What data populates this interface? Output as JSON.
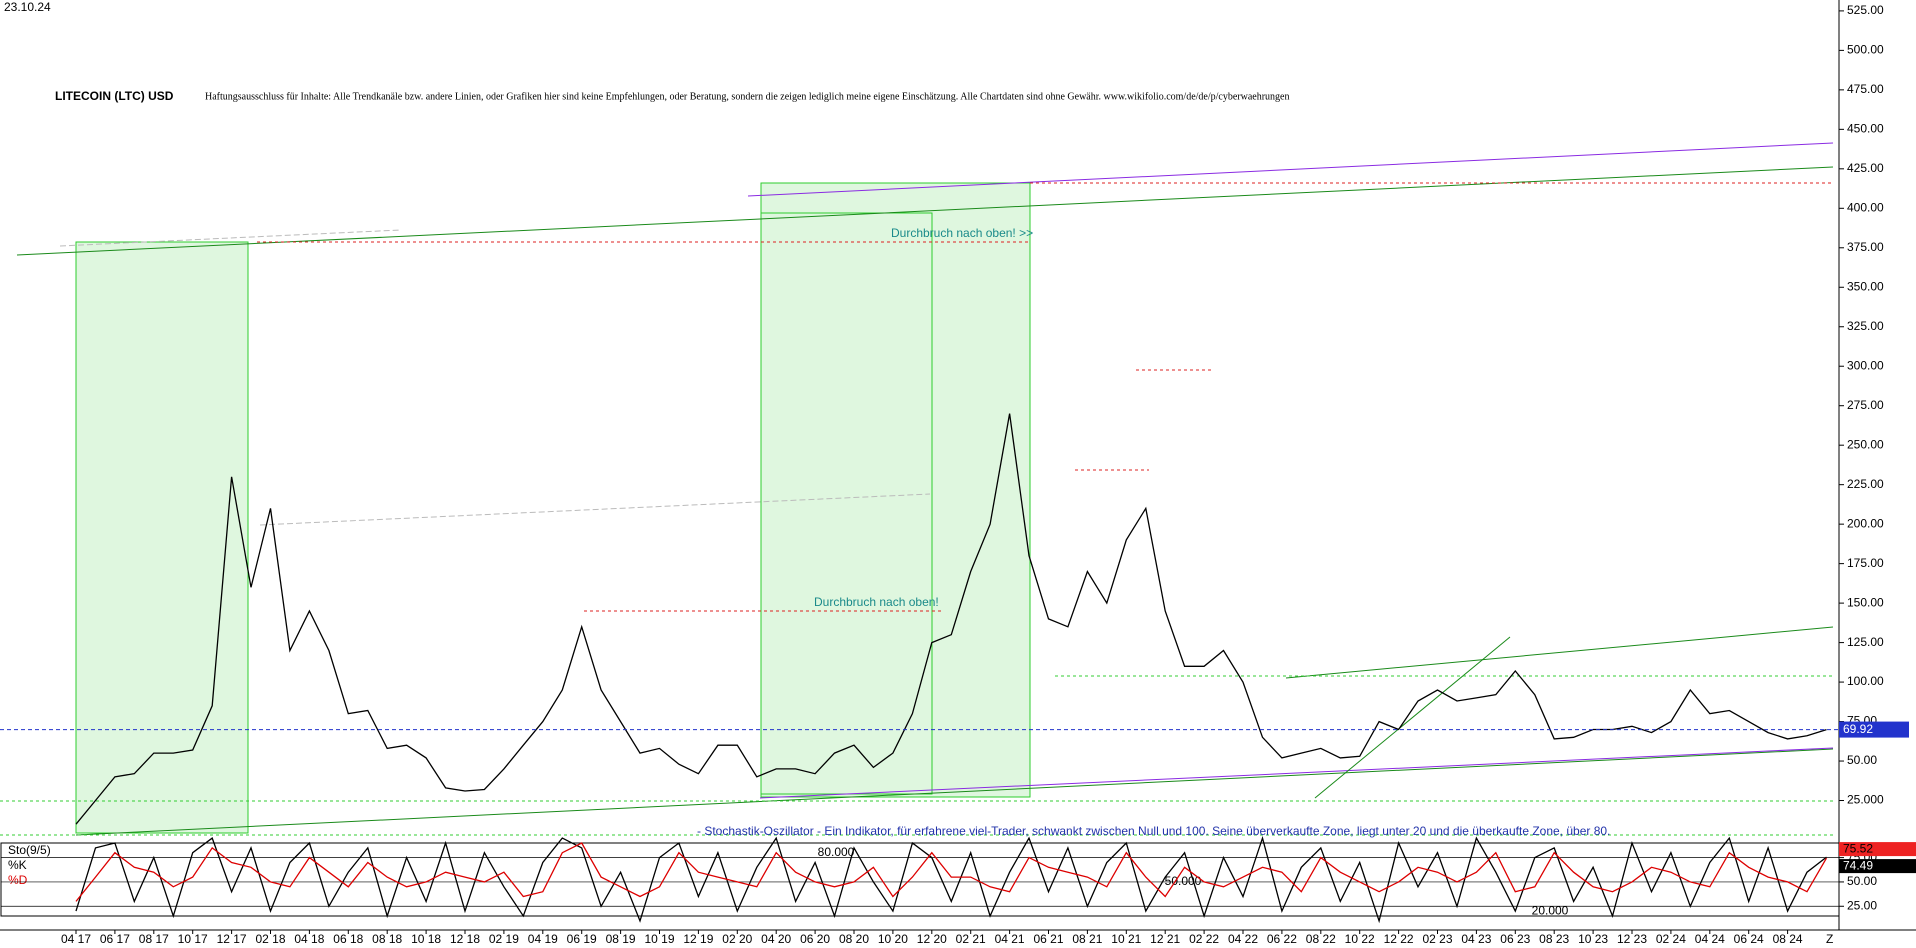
{
  "chart_data": [
    {
      "type": "line",
      "date": "23.10.24",
      "title": "LITECOIN (LTC) USD",
      "subtitle": "Haftungsausschluss für Inhalte: Alle Trendkanäle bzw. andere Linien, oder Grafiken hier sind keine Empfehlungen, oder Beratung, sondern die zeigen lediglich meine eigene Einschätzung. Alle Chartdaten sind ohne Gewähr. www.wikifolio.com/de/de/p/cyberwaehrungen",
      "annotations": [
        "Durchbruch nach oben! >>",
        "Durchbruch nach oben!"
      ],
      "categories": [
        "04 17",
        null,
        "06 17",
        null,
        "08 17",
        null,
        "10 17",
        null,
        "12 17",
        null,
        "02 18",
        null,
        "04 18",
        null,
        "06 18",
        null,
        "08 18",
        null,
        "10 18",
        null,
        "12 18",
        null,
        "02 19",
        null,
        "04 19",
        null,
        "06 19",
        null,
        "08 19",
        null,
        "10 19",
        null,
        "12 19",
        null,
        "02 20",
        null,
        "04 20",
        null,
        "06 20",
        null,
        "08 20",
        null,
        "10 20",
        null,
        "12 20",
        null,
        "02 21",
        null,
        "04 21",
        null,
        "06 21",
        null,
        "08 21",
        null,
        "10 21",
        null,
        "12 21",
        null,
        "02 22",
        null,
        "04 22",
        null,
        "06 22",
        null,
        "08 22",
        null,
        "10 22",
        null,
        "12 22",
        null,
        "02 23",
        null,
        "04 23",
        null,
        "06 23",
        null,
        "08 23",
        null,
        "10 23",
        null,
        "12 23",
        null,
        "02 24",
        null,
        "04 24",
        null,
        "06 24",
        null,
        "08 24",
        null,
        null
      ],
      "x_end_label": "Z",
      "series": [
        {
          "color": "#000000",
          "values": [
            10,
            25,
            40,
            42,
            55,
            55,
            57,
            85,
            230,
            160,
            210,
            120,
            145,
            120,
            80,
            82,
            58,
            60,
            52,
            33,
            31,
            32,
            45,
            60,
            75,
            95,
            135,
            95,
            75,
            55,
            58,
            48,
            42,
            60,
            60,
            40,
            45,
            45,
            42,
            55,
            60,
            46,
            55,
            80,
            125,
            130,
            170,
            200,
            270,
            180,
            140,
            135,
            170,
            150,
            190,
            210,
            145,
            110,
            110,
            120,
            100,
            65,
            52,
            55,
            58,
            52,
            53,
            75,
            70,
            88,
            95,
            88,
            90,
            92,
            107,
            92,
            64,
            65,
            70,
            70,
            72,
            68,
            75,
            95,
            80,
            82,
            75,
            68,
            64,
            66,
            69.92
          ]
        }
      ],
      "ylim": [
        0,
        530
      ],
      "yticks": [
        {
          "value": 25,
          "label": "25.000"
        },
        {
          "value": 50,
          "label": "50.00"
        },
        {
          "value": 75,
          "label": "75.00"
        },
        {
          "value": 100,
          "label": "100.00"
        },
        {
          "value": 125,
          "label": "125.00"
        },
        {
          "value": 150,
          "label": "150.00"
        },
        {
          "value": 175,
          "label": "175.00"
        },
        {
          "value": 200,
          "label": "200.00"
        },
        {
          "value": 225,
          "label": "225.00"
        },
        {
          "value": 250,
          "label": "250.00"
        },
        {
          "value": 275,
          "label": "275.00"
        },
        {
          "value": 300,
          "label": "300.00"
        },
        {
          "value": 325,
          "label": "325.00"
        },
        {
          "value": 350,
          "label": "350.00"
        },
        {
          "value": 375,
          "label": "375.00"
        },
        {
          "value": 400,
          "label": "400.00"
        },
        {
          "value": 425,
          "label": "425.00"
        },
        {
          "value": 450,
          "label": "450.00"
        },
        {
          "value": 475,
          "label": "475.00"
        },
        {
          "value": 500,
          "label": "500.00"
        },
        {
          "value": 525,
          "label": "525.00"
        }
      ],
      "current_line_color": "#2233cc"
    },
    {
      "type": "line",
      "title": "Sto(9/5)",
      "description": "- Stochastik-Oszillator - Ein Indikator, für erfahrene viel-Trader, schwankt zwischen Null und 100. Seine überverkaufte Zone, liegt unter 20 und die überkaufte Zone, über 80.",
      "series": [
        {
          "name": "%K",
          "color": "#000000",
          "values": [
            20,
            85,
            90,
            30,
            75,
            15,
            80,
            95,
            40,
            85,
            20,
            70,
            90,
            25,
            60,
            85,
            15,
            75,
            30,
            90,
            20,
            80,
            45,
            15,
            70,
            95,
            85,
            25,
            60,
            10,
            75,
            90,
            35,
            80,
            20,
            65,
            95,
            30,
            70,
            15,
            85,
            50,
            20,
            90,
            75,
            30,
            80,
            15,
            60,
            95,
            40,
            85,
            25,
            70,
            90,
            20,
            55,
            80,
            15,
            75,
            35,
            95,
            20,
            65,
            85,
            30,
            70,
            10,
            90,
            45,
            80,
            25,
            95,
            60,
            20,
            75,
            85,
            30,
            65,
            15,
            90,
            40,
            80,
            25,
            70,
            95,
            30,
            85,
            20,
            60,
            75.52
          ]
        },
        {
          "name": "%D",
          "color": "#dd0000",
          "values": [
            30,
            55,
            80,
            65,
            60,
            45,
            55,
            85,
            70,
            65,
            50,
            45,
            75,
            60,
            45,
            70,
            55,
            45,
            50,
            60,
            55,
            50,
            60,
            35,
            40,
            80,
            90,
            55,
            45,
            35,
            45,
            80,
            60,
            55,
            50,
            45,
            80,
            60,
            50,
            45,
            50,
            65,
            35,
            55,
            80,
            55,
            55,
            45,
            40,
            75,
            65,
            60,
            55,
            45,
            80,
            55,
            35,
            65,
            50,
            45,
            55,
            65,
            60,
            40,
            75,
            60,
            50,
            40,
            50,
            65,
            60,
            50,
            60,
            80,
            40,
            45,
            80,
            60,
            45,
            40,
            50,
            65,
            60,
            50,
            45,
            80,
            65,
            55,
            50,
            40,
            74.49
          ]
        }
      ],
      "levels": [
        {
          "value": 80,
          "label": "80.000"
        },
        {
          "value": 50,
          "label": "50.000"
        },
        {
          "value": 20,
          "label": "20.000"
        }
      ],
      "ylim": [
        15,
        90
      ],
      "yticks": [
        {
          "value": 25,
          "label": "25.00"
        },
        {
          "value": 50,
          "label": "50.00"
        },
        {
          "value": 75,
          "label": "75.00"
        }
      ]
    }
  ]
}
